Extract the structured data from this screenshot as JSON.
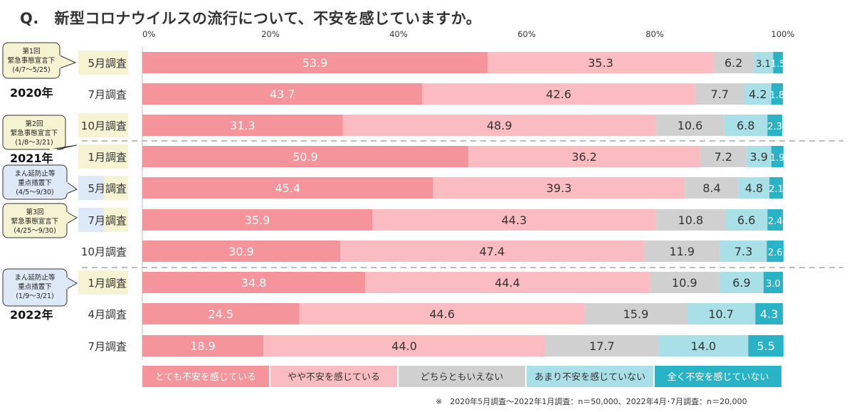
{
  "title": "Q.　新型コロナウイルスの流行について、不安を感じていますか。",
  "footnote": "※　2020年5月調査～2022年1月調査：n＝50,000、2022年4月･7月調査：n＝20,000",
  "colors": {
    "very_anxious": "#f5949a",
    "somewhat_anxious": "#fabcc0",
    "neither": "#d0d0d0",
    "not_very": "#a9dfe6",
    "not_at_all": "#2ab3c6"
  },
  "chart_data": {
    "type": "bar",
    "orientation": "horizontal",
    "stacked": true,
    "xlim": [
      0,
      100
    ],
    "x_ticks": [
      "0%",
      "20%",
      "40%",
      "60%",
      "80%",
      "100%"
    ],
    "categories": [
      "5月調査",
      "7月調査",
      "10月調査",
      "1月調査",
      "5月調査",
      "7月調査",
      "10月調査",
      "1月調査",
      "4月調査",
      "7月調査"
    ],
    "highlighted_categories": [
      0,
      2,
      3,
      4,
      5,
      7
    ],
    "year_labels": [
      "2020年",
      "2021年",
      "2022年"
    ],
    "series": [
      {
        "name": "とても不安を感じている",
        "values": [
          53.9,
          43.7,
          31.3,
          50.9,
          45.4,
          35.9,
          30.9,
          34.8,
          24.5,
          18.9
        ]
      },
      {
        "name": "やや不安を感じている",
        "values": [
          35.3,
          42.6,
          48.9,
          36.2,
          39.3,
          44.3,
          47.4,
          44.4,
          44.6,
          44.0
        ]
      },
      {
        "name": "どちらともいえない",
        "values": [
          6.2,
          7.7,
          10.6,
          7.2,
          8.4,
          10.8,
          11.9,
          10.9,
          15.9,
          17.7
        ]
      },
      {
        "name": "あまり不安を感じていない",
        "values": [
          3.1,
          4.2,
          6.8,
          3.9,
          4.8,
          6.6,
          7.3,
          6.9,
          10.7,
          14.0
        ]
      },
      {
        "name": "全く不安を感じていない",
        "values": [
          1.5,
          1.8,
          2.3,
          1.9,
          2.1,
          2.4,
          2.6,
          3.0,
          4.3,
          5.5
        ]
      }
    ],
    "callouts": [
      {
        "lines": [
          "第1回",
          "緊急事態宣言下",
          "(4/7～5/25)"
        ]
      },
      {
        "lines": [
          "第2回",
          "緊急事態宣言下",
          "(1/8～3/21)"
        ]
      },
      {
        "lines": [
          "まん延防止等",
          "重点措置下",
          "(4/5～9/30)"
        ]
      },
      {
        "lines": [
          "第3回",
          "緊急事態宣言下",
          "(4/25～9/30)"
        ]
      },
      {
        "lines": [
          "まん延防止等",
          "重点措置下",
          "(1/9～3/21)"
        ]
      }
    ]
  }
}
